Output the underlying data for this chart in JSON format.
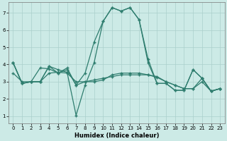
{
  "xlabel": "Humidex (Indice chaleur)",
  "x_values": [
    0,
    1,
    2,
    3,
    4,
    5,
    6,
    7,
    8,
    9,
    10,
    11,
    12,
    13,
    14,
    15,
    16,
    17,
    18,
    19,
    20,
    21,
    22,
    23
  ],
  "series": [
    [
      4.1,
      2.9,
      3.0,
      3.0,
      3.9,
      3.7,
      3.55,
      1.05,
      2.8,
      4.1,
      6.5,
      7.3,
      7.1,
      7.3,
      6.6,
      4.1,
      2.9,
      2.9,
      2.5,
      2.5,
      3.7,
      3.2,
      2.45,
      2.6
    ],
    [
      4.1,
      2.9,
      3.0,
      3.8,
      3.75,
      3.5,
      3.7,
      2.8,
      3.0,
      3.0,
      3.1,
      3.4,
      3.5,
      3.5,
      3.5,
      3.4,
      3.3,
      3.0,
      2.8,
      2.6,
      2.6,
      3.2,
      2.45,
      2.6
    ],
    [
      3.5,
      3.0,
      3.0,
      3.0,
      3.5,
      3.55,
      3.5,
      3.0,
      3.0,
      3.1,
      3.2,
      3.3,
      3.4,
      3.4,
      3.4,
      3.4,
      3.25,
      3.0,
      2.8,
      2.6,
      2.6,
      3.0,
      2.45,
      2.6
    ],
    [
      4.1,
      2.9,
      3.0,
      3.0,
      3.9,
      3.5,
      3.8,
      2.8,
      3.5,
      5.3,
      6.5,
      7.3,
      7.1,
      7.3,
      6.6,
      4.3,
      2.9,
      2.9,
      2.5,
      2.5,
      3.7,
      3.2,
      2.45,
      2.6
    ]
  ],
  "line_color": "#2e7d6e",
  "bg_color": "#cceae6",
  "grid_color": "#aacfcb",
  "ylim": [
    0.6,
    7.6
  ],
  "xlim": [
    -0.5,
    23.5
  ],
  "yticks": [
    1,
    2,
    3,
    4,
    5,
    6,
    7
  ],
  "xticks": [
    0,
    1,
    2,
    3,
    4,
    5,
    6,
    7,
    8,
    9,
    10,
    11,
    12,
    13,
    14,
    15,
    16,
    17,
    18,
    19,
    20,
    21,
    22,
    23
  ]
}
